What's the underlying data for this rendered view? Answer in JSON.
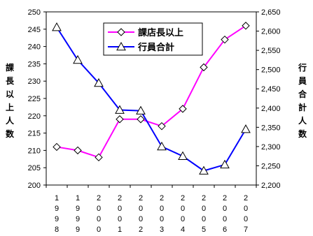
{
  "chart_data": {
    "type": "line",
    "x": [
      "1998",
      "1999",
      "2000",
      "2001",
      "2002",
      "2003",
      "2004",
      "2005",
      "2006",
      "2007"
    ],
    "series": [
      {
        "name": "課店長以上",
        "axis": "left",
        "color": "#ff00ff",
        "marker": "diamond",
        "values": [
          211,
          210,
          208,
          219,
          219,
          217,
          222,
          234,
          242,
          246
        ]
      },
      {
        "name": "行員合計",
        "axis": "right",
        "color": "#0000ff",
        "marker": "triangle",
        "values": [
          2610,
          2525,
          2465,
          2395,
          2393,
          2300,
          2275,
          2237,
          2253,
          2345
        ]
      }
    ],
    "ylabel_left": "課長以上人数",
    "ylabel_right": "行員合計人数",
    "ylim_left": [
      200,
      250
    ],
    "ylim_right": [
      2200,
      2650
    ],
    "yticks_left": [
      "200",
      "205",
      "210",
      "215",
      "220",
      "225",
      "230",
      "235",
      "240",
      "245",
      "250"
    ],
    "yticks_right": [
      "2,200",
      "2,250",
      "2,300",
      "2,350",
      "2,400",
      "2,450",
      "2,500",
      "2,550",
      "2,600",
      "2,650"
    ],
    "legend_placement": "top-center",
    "grid": false
  }
}
